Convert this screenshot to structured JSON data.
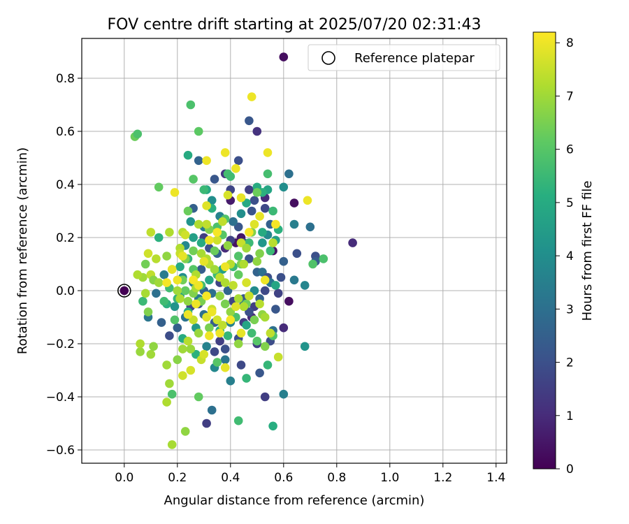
{
  "chart_data": {
    "type": "scatter",
    "title": "FOV centre drift starting at 2025/07/20 02:31:43",
    "xlabel": "Angular distance from reference (arcmin)",
    "ylabel": "Rotation from reference (arcmin)",
    "xlim": [
      -0.16,
      1.44
    ],
    "ylim": [
      -0.65,
      0.95
    ],
    "xticks": [
      0.0,
      0.2,
      0.4,
      0.6,
      0.8,
      1.0,
      1.2,
      1.4
    ],
    "yticks": [
      -0.6,
      -0.4,
      -0.2,
      0.0,
      0.2,
      0.4,
      0.6,
      0.8
    ],
    "xtick_labels": [
      "0.0",
      "0.2",
      "0.4",
      "0.6",
      "0.8",
      "1.0",
      "1.2",
      "1.4"
    ],
    "ytick_labels": [
      "−0.6",
      "−0.4",
      "−0.2",
      "0.0",
      "0.2",
      "0.4",
      "0.6",
      "0.8"
    ],
    "grid": true,
    "legend": {
      "position": "top-right",
      "label": "Reference platepar"
    },
    "reference_point": {
      "x": 0.0,
      "y": 0.0
    },
    "colorbar": {
      "label": "Hours from first FF file",
      "range": [
        0,
        8.2
      ],
      "ticks": [
        0,
        1,
        2,
        3,
        4,
        5,
        6,
        7,
        8
      ],
      "tick_labels": [
        "0",
        "1",
        "2",
        "3",
        "4",
        "5",
        "6",
        "7",
        "8"
      ],
      "colormap": "viridis"
    },
    "points": [
      [
        0.6,
        0.88,
        0.3
      ],
      [
        0.86,
        0.18,
        1.0
      ],
      [
        0.64,
        0.33,
        0.3
      ],
      [
        0.62,
        -0.04,
        0.3
      ],
      [
        0.6,
        -0.14,
        1.0
      ],
      [
        0.53,
        -0.4,
        1.5
      ],
      [
        0.56,
        0.15,
        0.5
      ],
      [
        0.44,
        0.2,
        0.5
      ],
      [
        0.4,
        0.34,
        0.6
      ],
      [
        0.42,
        0.18,
        0.4
      ],
      [
        0.47,
        0.64,
        2.2
      ],
      [
        0.5,
        0.6,
        1.2
      ],
      [
        0.43,
        0.49,
        2.0
      ],
      [
        0.47,
        0.38,
        1.5
      ],
      [
        0.49,
        0.34,
        2.0
      ],
      [
        0.53,
        0.35,
        1.0
      ],
      [
        0.53,
        0.31,
        1.8
      ],
      [
        0.55,
        0.25,
        2.5
      ],
      [
        0.62,
        0.44,
        3.0
      ],
      [
        0.6,
        0.39,
        4.0
      ],
      [
        0.64,
        0.25,
        3.5
      ],
      [
        0.65,
        0.14,
        2.0
      ],
      [
        0.64,
        0.04,
        3.3
      ],
      [
        0.68,
        0.02,
        3.7
      ],
      [
        0.72,
        0.13,
        2.0
      ],
      [
        0.72,
        0.11,
        2.4
      ],
      [
        0.7,
        0.24,
        3.0
      ],
      [
        0.68,
        -0.21,
        4.2
      ],
      [
        0.6,
        -0.39,
        3.5
      ],
      [
        0.59,
        0.05,
        2.0
      ],
      [
        0.6,
        0.11,
        2.5
      ],
      [
        0.58,
        -0.01,
        1.6
      ],
      [
        0.57,
        -0.07,
        2.2
      ],
      [
        0.56,
        -0.15,
        3.0
      ],
      [
        0.55,
        -0.19,
        1.9
      ],
      [
        0.51,
        -0.31,
        2.2
      ],
      [
        0.5,
        -0.2,
        1.5
      ],
      [
        0.48,
        -0.1,
        1.0
      ],
      [
        0.45,
        -0.12,
        1.5
      ],
      [
        0.43,
        -0.18,
        2.0
      ],
      [
        0.44,
        -0.28,
        1.8
      ],
      [
        0.4,
        -0.34,
        3.5
      ],
      [
        0.38,
        -0.22,
        2.0
      ],
      [
        0.34,
        -0.23,
        1.8
      ],
      [
        0.31,
        -0.5,
        1.5
      ],
      [
        0.33,
        -0.45,
        3.0
      ],
      [
        0.36,
        -0.19,
        1.5
      ],
      [
        0.34,
        -0.12,
        2.4
      ],
      [
        0.3,
        -0.09,
        3.0
      ],
      [
        0.28,
        -0.05,
        2.0
      ],
      [
        0.26,
        0.03,
        3.5
      ],
      [
        0.29,
        0.08,
        2.4
      ],
      [
        0.3,
        0.2,
        1.5
      ],
      [
        0.32,
        0.16,
        2.0
      ],
      [
        0.35,
        0.14,
        2.6
      ],
      [
        0.38,
        0.16,
        1.0
      ],
      [
        0.4,
        0.19,
        1.6
      ],
      [
        0.43,
        0.24,
        2.2
      ],
      [
        0.45,
        0.18,
        1.8
      ],
      [
        0.47,
        0.12,
        2.1
      ],
      [
        0.5,
        0.07,
        2.6
      ],
      [
        0.52,
        0.07,
        3.0
      ],
      [
        0.54,
        0.05,
        2.0
      ],
      [
        0.55,
        0.03,
        3.2
      ],
      [
        0.53,
        0.0,
        1.8
      ],
      [
        0.51,
        -0.03,
        2.5
      ],
      [
        0.49,
        -0.06,
        1.5
      ],
      [
        0.47,
        -0.08,
        2.0
      ],
      [
        0.45,
        -0.03,
        2.2
      ],
      [
        0.41,
        -0.04,
        1.7
      ],
      [
        0.39,
        0.0,
        2.7
      ],
      [
        0.36,
        0.03,
        1.7
      ],
      [
        0.33,
        -0.01,
        3.0
      ],
      [
        0.3,
        0.0,
        2.6
      ],
      [
        0.28,
        -0.03,
        3.4
      ],
      [
        0.25,
        -0.06,
        1.8
      ],
      [
        0.23,
        -0.1,
        3.1
      ],
      [
        0.2,
        -0.14,
        2.5
      ],
      [
        0.17,
        -0.17,
        1.9
      ],
      [
        0.14,
        -0.12,
        2.5
      ],
      [
        0.12,
        -0.01,
        3.0
      ],
      [
        0.15,
        0.06,
        3.4
      ],
      [
        0.09,
        -0.1,
        3.2
      ],
      [
        0.26,
        0.31,
        2.5
      ],
      [
        0.28,
        0.49,
        2.6
      ],
      [
        0.34,
        0.42,
        2.2
      ],
      [
        0.38,
        0.44,
        1.3
      ],
      [
        0.4,
        0.38,
        1.7
      ],
      [
        0.48,
        0.3,
        2.1
      ],
      [
        0.41,
        0.26,
        3.0
      ],
      [
        0.36,
        0.28,
        3.6
      ],
      [
        0.33,
        0.34,
        4.0
      ],
      [
        0.3,
        0.24,
        3.4
      ],
      [
        0.25,
        0.26,
        4.2
      ],
      [
        0.23,
        0.17,
        3.8
      ],
      [
        0.22,
        0.05,
        4.0
      ],
      [
        0.21,
        -0.02,
        4.6
      ],
      [
        0.19,
        -0.06,
        4.2
      ],
      [
        0.22,
        -0.18,
        5.0
      ],
      [
        0.27,
        -0.14,
        4.4
      ],
      [
        0.31,
        -0.21,
        3.6
      ],
      [
        0.34,
        -0.29,
        3.8
      ],
      [
        0.38,
        -0.26,
        3.2
      ],
      [
        0.4,
        -0.12,
        3.6
      ],
      [
        0.45,
        -0.05,
        3.0
      ],
      [
        0.49,
        0.0,
        3.9
      ],
      [
        0.52,
        0.18,
        4.3
      ],
      [
        0.54,
        0.21,
        3.8
      ],
      [
        0.57,
        0.19,
        4.6
      ],
      [
        0.58,
        0.23,
        5.2
      ],
      [
        0.56,
        0.3,
        5.5
      ],
      [
        0.54,
        0.38,
        4.8
      ],
      [
        0.52,
        0.37,
        5.2
      ],
      [
        0.5,
        0.39,
        5.0
      ],
      [
        0.46,
        0.33,
        4.9
      ],
      [
        0.44,
        0.29,
        4.0
      ],
      [
        0.39,
        0.44,
        5.7
      ],
      [
        0.33,
        0.31,
        5.2
      ],
      [
        0.31,
        0.38,
        4.9
      ],
      [
        0.29,
        0.18,
        5.0
      ],
      [
        0.26,
        0.2,
        4.6
      ],
      [
        0.24,
        0.12,
        5.4
      ],
      [
        0.21,
        0.09,
        5.0
      ],
      [
        0.17,
        0.01,
        5.6
      ],
      [
        0.16,
        -0.05,
        5.2
      ],
      [
        0.19,
        -0.11,
        5.9
      ],
      [
        0.24,
        -0.08,
        5.0
      ],
      [
        0.27,
        -0.24,
        5.2
      ],
      [
        0.36,
        -0.15,
        5.0
      ],
      [
        0.39,
        -0.17,
        5.4
      ],
      [
        0.42,
        -0.1,
        5.8
      ],
      [
        0.46,
        -0.13,
        4.8
      ],
      [
        0.48,
        -0.16,
        5.6
      ],
      [
        0.5,
        -0.19,
        6.0
      ],
      [
        0.54,
        -0.28,
        5.4
      ],
      [
        0.56,
        -0.51,
        5.1
      ],
      [
        0.43,
        -0.49,
        5.6
      ],
      [
        0.46,
        -0.33,
        5.4
      ],
      [
        0.56,
        -0.17,
        5.9
      ],
      [
        0.57,
        0.02,
        4.8
      ],
      [
        0.55,
        0.15,
        5.5
      ],
      [
        0.52,
        0.22,
        5.0
      ],
      [
        0.47,
        0.18,
        5.5
      ],
      [
        0.43,
        0.13,
        5.9
      ],
      [
        0.41,
        0.09,
        5.5
      ],
      [
        0.37,
        0.08,
        4.6
      ],
      [
        0.35,
        0.06,
        5.6
      ],
      [
        0.32,
        0.04,
        4.8
      ],
      [
        0.29,
        0.02,
        5.6
      ],
      [
        0.26,
        0.08,
        6.0
      ],
      [
        0.23,
        0.0,
        6.2
      ],
      [
        0.2,
        -0.03,
        5.4
      ],
      [
        0.24,
        0.51,
        5.0
      ],
      [
        0.25,
        0.7,
        5.8
      ],
      [
        0.28,
        0.6,
        6.1
      ],
      [
        0.3,
        0.38,
        5.5
      ],
      [
        0.26,
        0.42,
        6.0
      ],
      [
        0.24,
        0.3,
        6.3
      ],
      [
        0.35,
        0.24,
        5.8
      ],
      [
        0.37,
        0.21,
        6.0
      ],
      [
        0.38,
        0.27,
        5.9
      ],
      [
        0.4,
        0.43,
        5.6
      ],
      [
        0.5,
        0.37,
        6.3
      ],
      [
        0.54,
        0.44,
        5.7
      ],
      [
        0.75,
        0.12,
        5.8
      ],
      [
        0.71,
        0.1,
        5.9
      ],
      [
        0.13,
        0.2,
        5.2
      ],
      [
        0.13,
        0.39,
        6.2
      ],
      [
        0.04,
        0.58,
        6.3
      ],
      [
        0.05,
        0.59,
        5.8
      ],
      [
        0.08,
        0.1,
        6.4
      ],
      [
        0.07,
        -0.04,
        5.5
      ],
      [
        0.15,
        -0.04,
        5.6
      ],
      [
        0.18,
        -0.39,
        5.8
      ],
      [
        0.28,
        -0.4,
        6.2
      ],
      [
        0.35,
        -0.27,
        6.0
      ],
      [
        0.32,
        -0.14,
        6.5
      ],
      [
        0.29,
        -0.04,
        6.5
      ],
      [
        0.26,
        -0.01,
        6.6
      ],
      [
        0.22,
        0.04,
        6.4
      ],
      [
        0.23,
        0.12,
        6.6
      ],
      [
        0.26,
        0.15,
        6.4
      ],
      [
        0.32,
        0.23,
        6.6
      ],
      [
        0.34,
        0.15,
        6.3
      ],
      [
        0.39,
        0.17,
        6.8
      ],
      [
        0.43,
        0.06,
        6.2
      ],
      [
        0.44,
        0.1,
        6.5
      ],
      [
        0.48,
        0.22,
        6.6
      ],
      [
        0.5,
        0.11,
        6.8
      ],
      [
        0.51,
        0.14,
        6.6
      ],
      [
        0.46,
        -0.05,
        6.4
      ],
      [
        0.49,
        -0.11,
        6.5
      ],
      [
        0.52,
        -0.09,
        6.8
      ],
      [
        0.53,
        -0.21,
        6.6
      ],
      [
        0.43,
        -0.2,
        6.8
      ],
      [
        0.4,
        -0.08,
        6.8
      ],
      [
        0.38,
        -0.05,
        6.5
      ],
      [
        0.36,
        -0.02,
        6.8
      ],
      [
        0.33,
        -0.08,
        6.9
      ],
      [
        0.28,
        -0.16,
        6.9
      ],
      [
        0.25,
        -0.22,
        6.9
      ],
      [
        0.22,
        -0.22,
        7.0
      ],
      [
        0.2,
        -0.26,
        6.7
      ],
      [
        0.16,
        -0.28,
        7.0
      ],
      [
        0.16,
        -0.42,
        7.2
      ],
      [
        0.17,
        -0.35,
        7.0
      ],
      [
        0.18,
        -0.58,
        7.1
      ],
      [
        0.23,
        -0.53,
        6.8
      ],
      [
        0.06,
        -0.23,
        6.9
      ],
      [
        0.06,
        -0.2,
        7.2
      ],
      [
        0.1,
        -0.24,
        7.0
      ],
      [
        0.11,
        -0.21,
        6.8
      ],
      [
        0.09,
        -0.08,
        6.6
      ],
      [
        0.08,
        -0.01,
        7.1
      ],
      [
        0.07,
        0.05,
        7.0
      ],
      [
        0.05,
        0.06,
        7.2
      ],
      [
        0.1,
        0.06,
        7.4
      ],
      [
        0.11,
        0.04,
        6.7
      ],
      [
        0.13,
        0.03,
        7.0
      ],
      [
        0.16,
        0.13,
        6.8
      ],
      [
        0.18,
        0.08,
        7.3
      ],
      [
        0.2,
        0.0,
        7.0
      ],
      [
        0.21,
        -0.03,
        7.2
      ],
      [
        0.24,
        -0.04,
        6.8
      ],
      [
        0.27,
        0.01,
        7.1
      ],
      [
        0.27,
        0.06,
        7.2
      ],
      [
        0.29,
        0.14,
        7.1
      ],
      [
        0.31,
        0.12,
        7.2
      ],
      [
        0.32,
        0.1,
        7.3
      ],
      [
        0.34,
        0.08,
        7.0
      ],
      [
        0.36,
        0.05,
        7.4
      ],
      [
        0.38,
        0.03,
        7.2
      ],
      [
        0.41,
        0.02,
        7.4
      ],
      [
        0.43,
        -0.03,
        7.1
      ],
      [
        0.45,
        -0.06,
        7.2
      ],
      [
        0.47,
        -0.02,
        7.5
      ],
      [
        0.51,
        -0.05,
        7.3
      ],
      [
        0.53,
        -0.1,
        7.1
      ],
      [
        0.55,
        -0.16,
        7.4
      ],
      [
        0.58,
        -0.25,
        7.5
      ],
      [
        0.56,
        0.18,
        7.3
      ],
      [
        0.45,
        0.1,
        7.2
      ],
      [
        0.44,
        0.18,
        7.5
      ],
      [
        0.46,
        0.16,
        7.0
      ],
      [
        0.4,
        0.1,
        7.3
      ],
      [
        0.37,
        0.26,
        7.4
      ],
      [
        0.35,
        0.19,
        7.6
      ],
      [
        0.31,
        0.25,
        7.4
      ],
      [
        0.28,
        0.25,
        7.2
      ],
      [
        0.22,
        0.22,
        7.3
      ],
      [
        0.21,
        0.16,
        7.2
      ],
      [
        0.21,
        0.14,
        7.5
      ],
      [
        0.1,
        0.22,
        7.4
      ],
      [
        0.09,
        0.14,
        7.6
      ],
      [
        0.12,
        0.12,
        7.3
      ],
      [
        0.17,
        0.22,
        7.2
      ],
      [
        0.23,
        0.21,
        7.6
      ],
      [
        0.26,
        -0.11,
        7.5
      ],
      [
        0.24,
        -0.19,
        7.3
      ],
      [
        0.22,
        -0.32,
        7.6
      ],
      [
        0.25,
        -0.3,
        7.7
      ],
      [
        0.29,
        -0.26,
        7.5
      ],
      [
        0.3,
        -0.24,
        7.7
      ],
      [
        0.31,
        -0.1,
        7.8
      ],
      [
        0.33,
        -0.07,
        7.5
      ],
      [
        0.35,
        -0.11,
        7.6
      ],
      [
        0.37,
        -0.13,
        7.4
      ],
      [
        0.38,
        -0.29,
        7.9
      ],
      [
        0.42,
        -0.06,
        7.8
      ],
      [
        0.44,
        -0.16,
        7.9
      ],
      [
        0.46,
        0.03,
        7.7
      ],
      [
        0.49,
        0.25,
        7.8
      ],
      [
        0.51,
        0.28,
        7.9
      ],
      [
        0.53,
        0.04,
        8.0
      ],
      [
        0.54,
        0.52,
        8.0
      ],
      [
        0.57,
        0.25,
        8.1
      ],
      [
        0.69,
        0.34,
        8.0
      ],
      [
        0.48,
        0.73,
        8.0
      ],
      [
        0.38,
        0.52,
        8.0
      ],
      [
        0.42,
        0.46,
        8.0
      ],
      [
        0.44,
        0.35,
        7.9
      ],
      [
        0.39,
        0.36,
        7.7
      ],
      [
        0.31,
        0.49,
        8.0
      ],
      [
        0.31,
        0.32,
        7.8
      ],
      [
        0.19,
        0.37,
        8.0
      ],
      [
        0.18,
        0.08,
        7.9
      ],
      [
        0.2,
        0.04,
        8.0
      ],
      [
        0.22,
        0.13,
        7.9
      ],
      [
        0.26,
        0.04,
        8.1
      ],
      [
        0.28,
        0.02,
        8.0
      ],
      [
        0.3,
        0.11,
        7.9
      ],
      [
        0.32,
        0.19,
        8.0
      ],
      [
        0.35,
        0.22,
        8.1
      ],
      [
        0.38,
        0.09,
        8.0
      ],
      [
        0.4,
        -0.11,
        8.1
      ],
      [
        0.36,
        -0.16,
        8.0
      ],
      [
        0.32,
        -0.17,
        8.0
      ],
      [
        0.31,
        -0.02,
        8.1
      ],
      [
        0.33,
        -0.08,
        8.0
      ],
      [
        0.27,
        -0.05,
        8.0
      ],
      [
        0.24,
        -0.09,
        8.0
      ],
      [
        0.16,
        0.03,
        8.1
      ],
      [
        0.47,
        0.22,
        8.1
      ]
    ]
  }
}
